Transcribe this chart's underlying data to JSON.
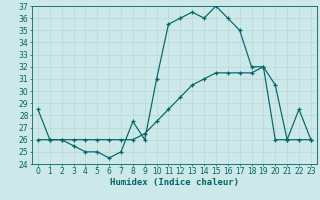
{
  "background_color": "#cce8e8",
  "line_color": "#006666",
  "grid_color": "#b8d8d8",
  "xlabel": "Humidex (Indice chaleur)",
  "x_values": [
    0,
    1,
    2,
    3,
    4,
    5,
    6,
    7,
    8,
    9,
    10,
    11,
    12,
    13,
    14,
    15,
    16,
    17,
    18,
    19,
    20,
    21,
    22,
    23
  ],
  "curve1_y": [
    28.5,
    26.0,
    26.0,
    25.5,
    25.0,
    25.0,
    24.5,
    25.0,
    27.5,
    26.0,
    31.0,
    35.5,
    36.0,
    36.5,
    36.0,
    37.0,
    36.0,
    35.0,
    32.0,
    32.0,
    30.5,
    26.0,
    28.5,
    26.0
  ],
  "curve2_y": [
    26.0,
    26.0,
    26.0,
    26.0,
    26.0,
    26.0,
    26.0,
    26.0,
    26.0,
    26.5,
    27.5,
    28.5,
    29.5,
    30.5,
    31.0,
    31.5,
    31.5,
    31.5,
    31.5,
    32.0,
    26.0,
    26.0,
    26.0,
    26.0
  ],
  "ylim": [
    24,
    37
  ],
  "xlim": [
    -0.5,
    23.5
  ],
  "yticks": [
    24,
    25,
    26,
    27,
    28,
    29,
    30,
    31,
    32,
    33,
    34,
    35,
    36,
    37
  ],
  "xticks": [
    0,
    1,
    2,
    3,
    4,
    5,
    6,
    7,
    8,
    9,
    10,
    11,
    12,
    13,
    14,
    15,
    16,
    17,
    18,
    19,
    20,
    21,
    22,
    23
  ],
  "tick_fontsize": 5.5,
  "label_fontsize": 6.5,
  "figsize": [
    3.2,
    2.0
  ],
  "dpi": 100
}
